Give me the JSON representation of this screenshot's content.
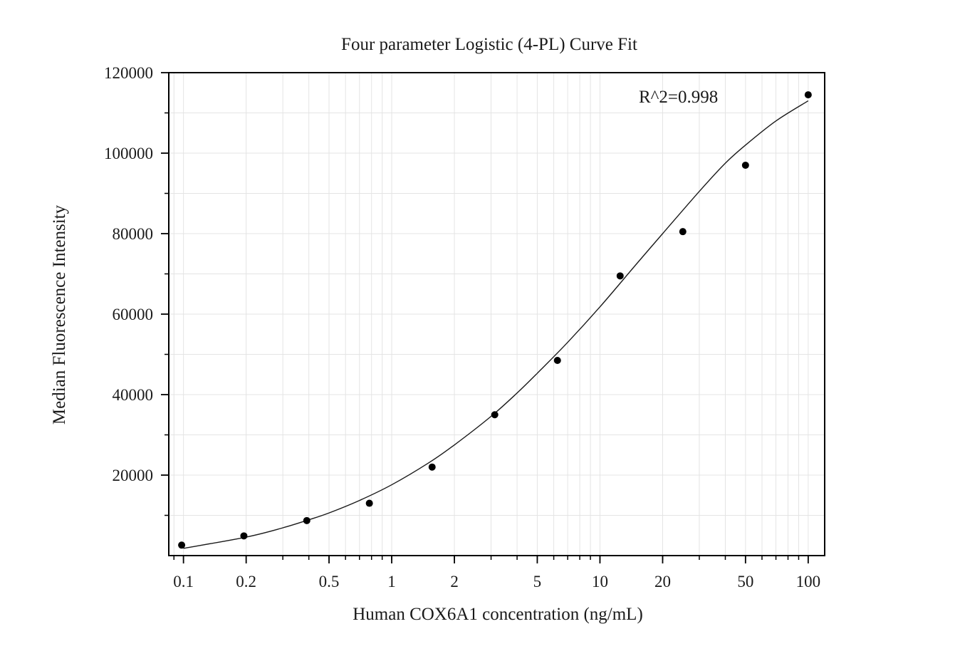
{
  "chart_data": {
    "type": "scatter",
    "title": "Four parameter Logistic (4-PL) Curve Fit",
    "xlabel": "Human COX6A1 concentration (ng/mL)",
    "ylabel": "Median Fluorescence Intensity",
    "x_scale": "log",
    "xlim": [
      0.085,
      120
    ],
    "ylim": [
      0,
      120000
    ],
    "grid": true,
    "x_ticks": [
      {
        "value": 0.1,
        "label": "0.1"
      },
      {
        "value": 0.2,
        "label": "0.2"
      },
      {
        "value": 0.5,
        "label": "0.5"
      },
      {
        "value": 1,
        "label": "1"
      },
      {
        "value": 2,
        "label": "2"
      },
      {
        "value": 5,
        "label": "5"
      },
      {
        "value": 10,
        "label": "10"
      },
      {
        "value": 20,
        "label": "20"
      },
      {
        "value": 50,
        "label": "50"
      },
      {
        "value": 100,
        "label": "100"
      }
    ],
    "y_ticks": [
      {
        "value": 20000,
        "label": "20000"
      },
      {
        "value": 40000,
        "label": "40000"
      },
      {
        "value": 60000,
        "label": "60000"
      },
      {
        "value": 80000,
        "label": "80000"
      },
      {
        "value": 100000,
        "label": "100000"
      },
      {
        "value": 120000,
        "label": "120000"
      }
    ],
    "annotation": "R^2=0.998",
    "series": [
      {
        "x": [
          0.098,
          0.195,
          0.391,
          0.781,
          1.563,
          3.125,
          6.25,
          12.5,
          25,
          50,
          100
        ],
        "y": [
          2600,
          4900,
          8700,
          13000,
          22000,
          35000,
          48500,
          69500,
          80500,
          97000,
          114500
        ]
      }
    ],
    "fit_curve": {
      "model": "4PL",
      "x": [
        0.1,
        0.2,
        0.3,
        0.4,
        0.5,
        0.7,
        1,
        1.5,
        2,
        3,
        4,
        5,
        7,
        10,
        15,
        20,
        30,
        40,
        50,
        70,
        100
      ],
      "y": [
        1800,
        4600,
        6900,
        8900,
        10600,
        13700,
        17600,
        23000,
        27500,
        34600,
        40400,
        45300,
        53000,
        61800,
        72500,
        80000,
        90500,
        97500,
        102000,
        108000,
        113000
      ]
    }
  }
}
